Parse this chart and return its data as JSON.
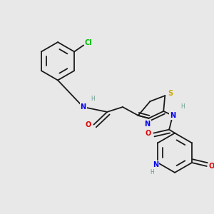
{
  "background_color": "#e8e8e8",
  "bond_color": "#1a1a1a",
  "atom_colors": {
    "N": "#0000ee",
    "O": "#dd0000",
    "S": "#ccaa00",
    "Cl": "#00bb00",
    "H": "#6a9a8a"
  },
  "fs": 7.0,
  "fsh": 5.5,
  "lw": 1.3,
  "figsize": [
    3.0,
    3.0
  ],
  "dpi": 100
}
